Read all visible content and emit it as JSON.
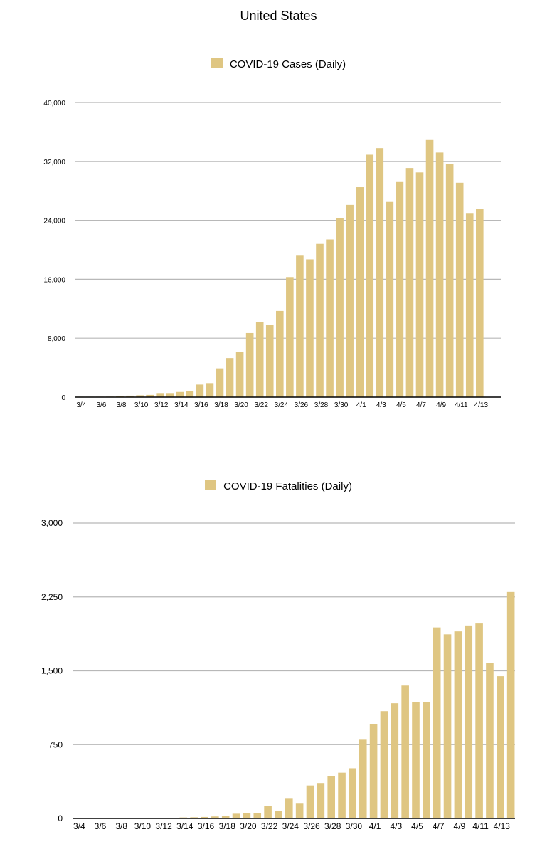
{
  "title": "United States",
  "colors": {
    "bar": "#DFC682",
    "grid": "#b8b8b8",
    "axis": "#000000"
  },
  "chart_data": [
    {
      "type": "bar",
      "title": "United States",
      "legend": "COVID-19 Cases (Daily)",
      "xlabel": "",
      "ylabel": "",
      "ylim": [
        0,
        40000
      ],
      "yticks": [
        0,
        8000,
        16000,
        24000,
        32000,
        40000
      ],
      "ytick_labels": [
        "0",
        "8,000",
        "16,000",
        "24,000",
        "32,000",
        "40,000"
      ],
      "categories": [
        "3/4",
        "3/5",
        "3/6",
        "3/7",
        "3/8",
        "3/9",
        "3/10",
        "3/11",
        "3/12",
        "3/13",
        "3/14",
        "3/15",
        "3/16",
        "3/17",
        "3/18",
        "3/19",
        "3/20",
        "3/21",
        "3/22",
        "3/23",
        "3/24",
        "3/25",
        "3/26",
        "3/27",
        "3/28",
        "3/29",
        "3/30",
        "3/31",
        "4/1",
        "4/2",
        "4/3",
        "4/4",
        "4/5",
        "4/6",
        "4/7",
        "4/8",
        "4/9",
        "4/10",
        "4/11",
        "4/12",
        "4/13",
        "4/14"
      ],
      "xtick_labels": [
        "3/4",
        "3/6",
        "3/8",
        "3/10",
        "3/12",
        "3/14",
        "3/16",
        "3/18",
        "3/20",
        "3/22",
        "3/24",
        "3/26",
        "3/28",
        "3/30",
        "4/1",
        "4/3",
        "4/5",
        "4/7",
        "4/9",
        "4/11",
        "4/13"
      ],
      "values": [
        30,
        50,
        60,
        70,
        100,
        200,
        250,
        300,
        550,
        550,
        700,
        800,
        1700,
        1900,
        3900,
        5300,
        6100,
        8700,
        10200,
        9800,
        11700,
        16300,
        19200,
        18700,
        20800,
        21400,
        24300,
        26100,
        28500,
        32900,
        33800,
        26500,
        29200,
        31100,
        30500,
        34900,
        33200,
        31600,
        29100,
        25000,
        25600,
        null
      ]
    },
    {
      "type": "bar",
      "title": "United States",
      "legend": "COVID-19 Fatalities (Daily)",
      "xlabel": "",
      "ylabel": "",
      "ylim": [
        0,
        3000
      ],
      "yticks": [
        0,
        750,
        1500,
        2250,
        3000
      ],
      "ytick_labels": [
        "0",
        "750",
        "1,500",
        "2,250",
        "3,000"
      ],
      "categories": [
        "3/4",
        "3/5",
        "3/6",
        "3/7",
        "3/8",
        "3/9",
        "3/10",
        "3/11",
        "3/12",
        "3/13",
        "3/14",
        "3/15",
        "3/16",
        "3/17",
        "3/18",
        "3/19",
        "3/20",
        "3/21",
        "3/22",
        "3/23",
        "3/24",
        "3/25",
        "3/26",
        "3/27",
        "3/28",
        "3/29",
        "3/30",
        "3/31",
        "4/1",
        "4/2",
        "4/3",
        "4/4",
        "4/5",
        "4/6",
        "4/7",
        "4/8",
        "4/9",
        "4/10",
        "4/11",
        "4/12",
        "4/13",
        "4/14"
      ],
      "xtick_labels": [
        "3/4",
        "3/6",
        "3/8",
        "3/10",
        "3/12",
        "3/14",
        "3/16",
        "3/18",
        "3/20",
        "3/22",
        "3/24",
        "3/26",
        "3/28",
        "3/30",
        "4/1",
        "4/3",
        "4/5",
        "4/7",
        "4/9",
        "4/11",
        "4/13"
      ],
      "values": [
        1,
        2,
        2,
        3,
        3,
        4,
        5,
        6,
        5,
        6,
        10,
        12,
        15,
        20,
        22,
        48,
        55,
        52,
        125,
        75,
        200,
        150,
        335,
        360,
        430,
        465,
        510,
        800,
        960,
        1090,
        1170,
        1350,
        1180,
        1180,
        1940,
        1870,
        1900,
        1960,
        1980,
        1580,
        1445,
        2300
      ]
    }
  ]
}
